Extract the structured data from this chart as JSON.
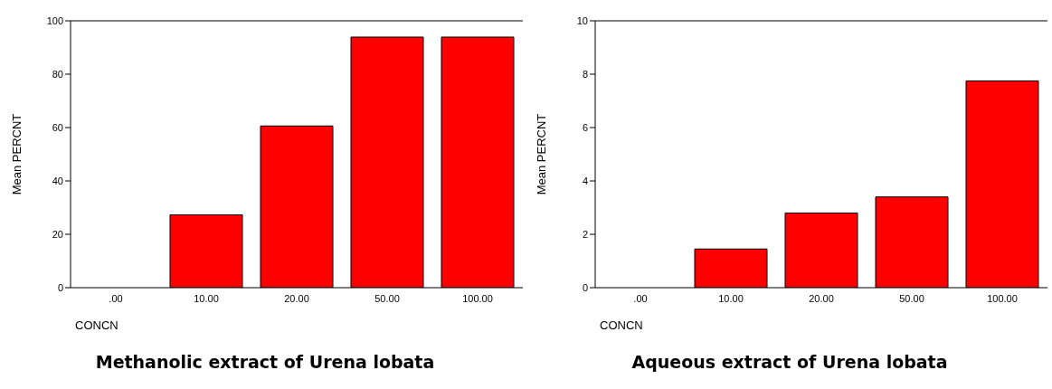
{
  "chart_data": [
    {
      "type": "bar",
      "title": "Methanolic extract of Urena lobata",
      "xlabel": "CONCN",
      "ylabel": "Mean PERCNT",
      "categories": [
        ".00",
        "10.00",
        "20.00",
        "50.00",
        "100.00"
      ],
      "values": [
        0,
        27.3,
        60.6,
        93.9,
        93.9
      ],
      "color": "#ff0000",
      "ylim": [
        0,
        100
      ],
      "yticks": [
        0,
        20,
        40,
        60,
        80,
        100
      ],
      "grid": false
    },
    {
      "type": "bar",
      "title": "Aqueous extract of Urena lobata",
      "xlabel": "CONCN",
      "ylabel": "Mean PERCNT",
      "categories": [
        ".00",
        "10.00",
        "20.00",
        "50.00",
        "100.00"
      ],
      "values": [
        0,
        1.45,
        2.8,
        3.4,
        7.75
      ],
      "color": "#ff0000",
      "ylim": [
        0,
        10
      ],
      "yticks": [
        0,
        2,
        4,
        6,
        8,
        10
      ],
      "grid": false
    }
  ]
}
